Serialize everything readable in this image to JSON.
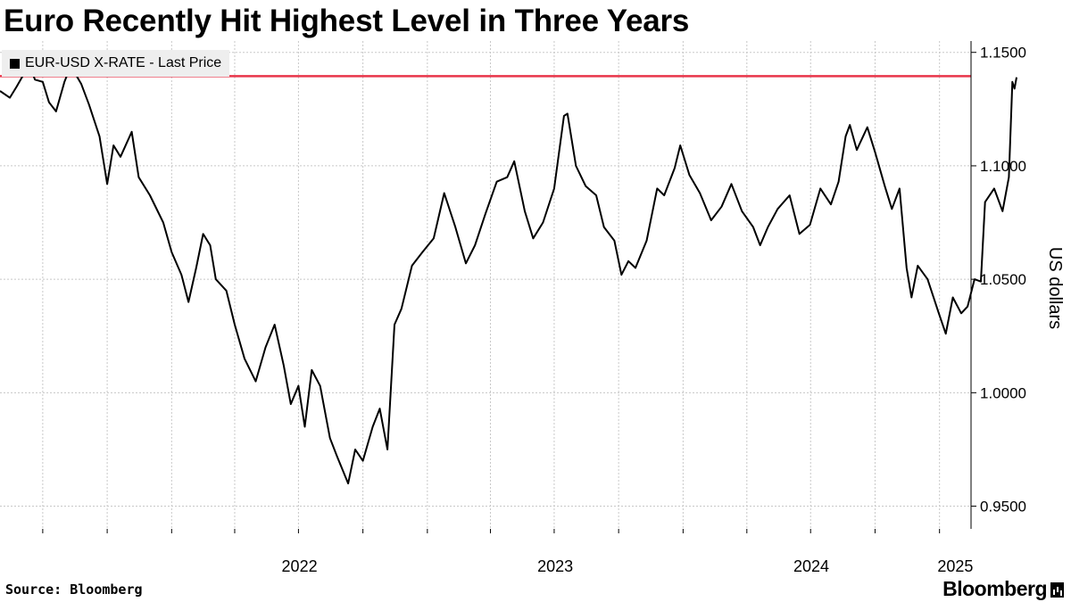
{
  "chart_data": {
    "type": "line",
    "title": "Euro Recently Hit Highest Level in Three Years",
    "legend": {
      "label": "EUR-USD X-RATE - Last Price",
      "placement": "top-left"
    },
    "ylabel": "US dollars",
    "ylim": [
      0.94,
      1.155
    ],
    "yticks": [
      {
        "value": 0.95,
        "label": "0.9500"
      },
      {
        "value": 1.0,
        "label": "1.0000"
      },
      {
        "value": 1.05,
        "label": "1.0500"
      },
      {
        "value": 1.1,
        "label": "1.1000"
      },
      {
        "value": 1.15,
        "label": "1.1500"
      }
    ],
    "xlim": [
      "2021-05-01",
      "2025-02-15"
    ],
    "xticks": [
      {
        "date": "2022-01-01",
        "label": "2022"
      },
      {
        "date": "2023-01-01",
        "label": "2023"
      },
      {
        "date": "2024-01-01",
        "label": "2024"
      },
      {
        "date": "2025-01-01",
        "label": "2025"
      }
    ],
    "grid": true,
    "reference_line": {
      "value": 1.1395,
      "color": "#e8354a"
    },
    "series": [
      {
        "name": "EUR-USD X-RATE - Last Price",
        "color": "#000000",
        "points": [
          [
            "2021-05-01",
            1.133
          ],
          [
            "2021-05-15",
            1.13
          ],
          [
            "2021-05-25",
            1.135
          ],
          [
            "2021-06-05",
            1.141
          ],
          [
            "2021-06-10",
            1.146
          ],
          [
            "2021-06-20",
            1.138
          ],
          [
            "2021-07-01",
            1.137
          ],
          [
            "2021-07-10",
            1.128
          ],
          [
            "2021-07-20",
            1.124
          ],
          [
            "2021-08-01",
            1.137
          ],
          [
            "2021-08-10",
            1.144
          ],
          [
            "2021-08-25",
            1.136
          ],
          [
            "2021-09-05",
            1.127
          ],
          [
            "2021-09-20",
            1.113
          ],
          [
            "2021-10-01",
            1.092
          ],
          [
            "2021-10-10",
            1.109
          ],
          [
            "2021-10-20",
            1.104
          ],
          [
            "2021-11-05",
            1.115
          ],
          [
            "2021-11-15",
            1.095
          ],
          [
            "2021-12-01",
            1.087
          ],
          [
            "2021-12-20",
            1.075
          ],
          [
            "2022-01-01",
            1.062
          ],
          [
            "2022-01-15",
            1.052
          ],
          [
            "2022-01-25",
            1.04
          ],
          [
            "2022-02-05",
            1.055
          ],
          [
            "2022-02-15",
            1.07
          ],
          [
            "2022-02-25",
            1.065
          ],
          [
            "2022-03-05",
            1.05
          ],
          [
            "2022-03-20",
            1.045
          ],
          [
            "2022-04-01",
            1.03
          ],
          [
            "2022-04-15",
            1.015
          ],
          [
            "2022-05-01",
            1.005
          ],
          [
            "2022-05-15",
            1.02
          ],
          [
            "2022-05-28",
            1.03
          ],
          [
            "2022-06-10",
            1.012
          ],
          [
            "2022-06-20",
            0.995
          ],
          [
            "2022-07-01",
            1.003
          ],
          [
            "2022-07-10",
            0.985
          ],
          [
            "2022-07-20",
            1.01
          ],
          [
            "2022-08-01",
            1.003
          ],
          [
            "2022-08-15",
            0.98
          ],
          [
            "2022-08-25",
            0.972
          ],
          [
            "2022-09-10",
            0.96
          ],
          [
            "2022-09-20",
            0.975
          ],
          [
            "2022-10-01",
            0.97
          ],
          [
            "2022-10-15",
            0.985
          ],
          [
            "2022-10-25",
            0.993
          ],
          [
            "2022-11-05",
            0.975
          ],
          [
            "2022-11-15",
            1.03
          ],
          [
            "2022-11-25",
            1.037
          ],
          [
            "2022-12-10",
            1.056
          ],
          [
            "2022-12-25",
            1.062
          ],
          [
            "2023-01-10",
            1.068
          ],
          [
            "2023-01-25",
            1.088
          ],
          [
            "2023-02-10",
            1.073
          ],
          [
            "2023-02-25",
            1.057
          ],
          [
            "2023-03-10",
            1.065
          ],
          [
            "2023-03-25",
            1.079
          ],
          [
            "2023-04-10",
            1.093
          ],
          [
            "2023-04-25",
            1.095
          ],
          [
            "2023-05-05",
            1.102
          ],
          [
            "2023-05-20",
            1.08
          ],
          [
            "2023-06-01",
            1.068
          ],
          [
            "2023-06-15",
            1.075
          ],
          [
            "2023-07-01",
            1.09
          ],
          [
            "2023-07-15",
            1.122
          ],
          [
            "2023-07-20",
            1.123
          ],
          [
            "2023-08-01",
            1.1
          ],
          [
            "2023-08-15",
            1.091
          ],
          [
            "2023-08-30",
            1.087
          ],
          [
            "2023-09-10",
            1.073
          ],
          [
            "2023-09-25",
            1.067
          ],
          [
            "2023-10-05",
            1.052
          ],
          [
            "2023-10-15",
            1.058
          ],
          [
            "2023-10-25",
            1.055
          ],
          [
            "2023-11-10",
            1.067
          ],
          [
            "2023-11-25",
            1.09
          ],
          [
            "2023-12-05",
            1.087
          ],
          [
            "2023-12-20",
            1.099
          ],
          [
            "2023-12-28",
            1.109
          ],
          [
            "2024-01-10",
            1.096
          ],
          [
            "2024-01-25",
            1.088
          ],
          [
            "2024-02-10",
            1.076
          ],
          [
            "2024-02-25",
            1.082
          ],
          [
            "2024-03-10",
            1.092
          ],
          [
            "2024-03-25",
            1.08
          ],
          [
            "2024-04-10",
            1.073
          ],
          [
            "2024-04-20",
            1.065
          ],
          [
            "2024-05-01",
            1.073
          ],
          [
            "2024-05-15",
            1.081
          ],
          [
            "2024-06-01",
            1.087
          ],
          [
            "2024-06-15",
            1.07
          ],
          [
            "2024-06-30",
            1.074
          ],
          [
            "2024-07-15",
            1.09
          ],
          [
            "2024-07-30",
            1.083
          ],
          [
            "2024-08-10",
            1.093
          ],
          [
            "2024-08-20",
            1.113
          ],
          [
            "2024-08-26",
            1.118
          ],
          [
            "2024-09-05",
            1.107
          ],
          [
            "2024-09-20",
            1.117
          ],
          [
            "2024-10-01",
            1.106
          ],
          [
            "2024-10-15",
            1.091
          ],
          [
            "2024-10-25",
            1.081
          ],
          [
            "2024-11-05",
            1.09
          ],
          [
            "2024-11-15",
            1.055
          ],
          [
            "2024-11-22",
            1.042
          ],
          [
            "2024-12-01",
            1.056
          ],
          [
            "2024-12-15",
            1.05
          ],
          [
            "2024-12-31",
            1.035
          ],
          [
            "2025-01-10",
            1.026
          ],
          [
            "2025-01-20",
            1.042
          ],
          [
            "2025-02-01",
            1.035
          ],
          [
            "2025-02-10",
            1.038
          ],
          [
            "2025-02-20",
            1.05
          ],
          [
            "2025-03-01",
            1.049
          ],
          [
            "2025-03-07",
            1.084
          ],
          [
            "2025-03-20",
            1.09
          ],
          [
            "2025-04-01",
            1.08
          ],
          [
            "2025-04-10",
            1.095
          ],
          [
            "2025-04-15",
            1.137
          ],
          [
            "2025-04-18",
            1.134
          ],
          [
            "2025-04-21",
            1.139
          ]
        ]
      }
    ]
  },
  "footer": {
    "source": "Source: Bloomberg",
    "brand": "Bloomberg"
  },
  "icons": {
    "brand_logo": "bloomberg-terminal-icon"
  }
}
